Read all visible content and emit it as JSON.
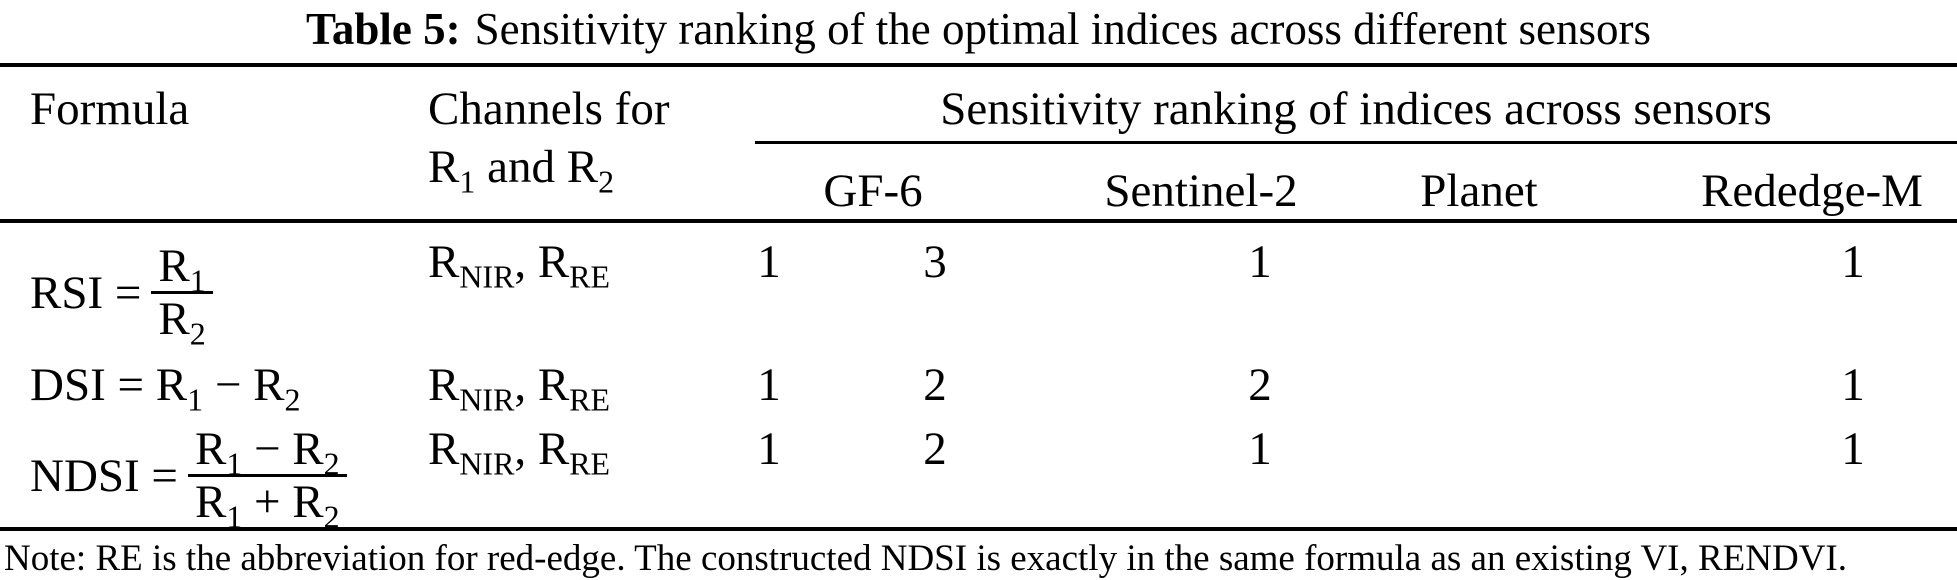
{
  "colors": {
    "background": "#ffffff",
    "text": "#000000",
    "rule": "#000000"
  },
  "title": {
    "bold_label": "Table 5:",
    "text": "Sensitivity ranking of the optimal indices across different sensors"
  },
  "table": {
    "header": {
      "formula": "Formula",
      "channels": {
        "line1": "Channels for",
        "line2_tokens": [
          {
            "base": "R",
            "sub": "1"
          },
          {
            "text": " and "
          },
          {
            "base": "R",
            "sub": "2"
          }
        ]
      },
      "ranking_group": "Sensitivity ranking of indices across sensors",
      "sensors": [
        "GF-6",
        "Sentinel-2",
        "Planet",
        "Rededge-M"
      ]
    },
    "rows": [
      {
        "name": "RSI",
        "formula_tokens": [
          {
            "text": "RSI ="
          },
          {
            "frac": {
              "num": [
                {
                  "base": "R",
                  "sub": "1"
                }
              ],
              "den": [
                {
                  "base": "R",
                  "sub": "2"
                }
              ]
            }
          }
        ],
        "channels_tokens": [
          {
            "base": "R",
            "sub": "NIR"
          },
          {
            "text": ", "
          },
          {
            "base": "R",
            "sub": "RE"
          }
        ],
        "rankings": {
          "gf6": [
            "1",
            "3"
          ],
          "sentinel2": "1",
          "planet": "",
          "rededge_m": "1"
        }
      },
      {
        "name": "DSI",
        "formula_tokens": [
          {
            "text": "DSI = "
          },
          {
            "base": "R",
            "sub": "1"
          },
          {
            "text": " − "
          },
          {
            "base": "R",
            "sub": "2"
          }
        ],
        "channels_tokens": [
          {
            "base": "R",
            "sub": "NIR"
          },
          {
            "text": ", "
          },
          {
            "base": "R",
            "sub": "RE"
          }
        ],
        "rankings": {
          "gf6": [
            "1",
            "2"
          ],
          "sentinel2": "2",
          "planet": "",
          "rededge_m": "1"
        }
      },
      {
        "name": "NDSI",
        "formula_tokens": [
          {
            "text": "NDSI ="
          },
          {
            "frac": {
              "num": [
                {
                  "base": "R",
                  "sub": "1"
                },
                {
                  "text": " − "
                },
                {
                  "base": "R",
                  "sub": "2"
                }
              ],
              "den": [
                {
                  "base": "R",
                  "sub": "1"
                },
                {
                  "text": " + "
                },
                {
                  "base": "R",
                  "sub": "2"
                }
              ]
            }
          }
        ],
        "channels_tokens": [
          {
            "base": "R",
            "sub": "NIR"
          },
          {
            "text": ", "
          },
          {
            "base": "R",
            "sub": "RE"
          }
        ],
        "rankings": {
          "gf6": [
            "1",
            "2"
          ],
          "sentinel2": "1",
          "planet": "",
          "rededge_m": "1"
        }
      }
    ]
  },
  "note": "Note: RE is the abbreviation for red-edge. The constructed NDSI is exactly in the same formula as an existing VI, RENDVI."
}
